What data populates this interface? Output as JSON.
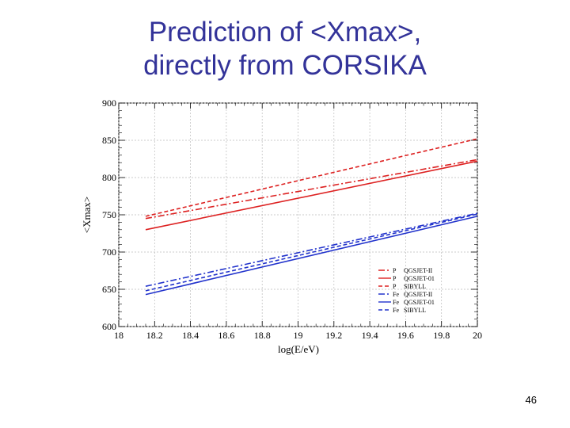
{
  "slide": {
    "title_line1": "Prediction of <Xmax>,",
    "title_line2": "directly from CORSIKA",
    "page_number": "46"
  },
  "chart_data": {
    "type": "line",
    "xlabel": "log(E/eV)",
    "ylabel": "<Xmax>",
    "xlim": [
      18,
      20
    ],
    "ylim": [
      600,
      900
    ],
    "xticks": [
      "18",
      "18.2",
      "18.4",
      "18.6",
      "18.8",
      "19",
      "19.2",
      "19.4",
      "19.6",
      "19.8",
      "20"
    ],
    "yticks": [
      "600",
      "650",
      "700",
      "750",
      "800",
      "850",
      "900"
    ],
    "grid": true,
    "legend_position": "bottom-right",
    "series": [
      {
        "name": "P QGSJET-II",
        "x": [
          18.15,
          20
        ],
        "y": [
          745,
          824
        ],
        "color": "#dd2222",
        "dash": "dashdot"
      },
      {
        "name": "P QGSJET-01",
        "x": [
          18.15,
          20
        ],
        "y": [
          730,
          822
        ],
        "color": "#dd2222",
        "dash": "solid"
      },
      {
        "name": "P SIBYLL",
        "x": [
          18.15,
          20
        ],
        "y": [
          748,
          852
        ],
        "color": "#dd2222",
        "dash": "dashed"
      },
      {
        "name": "Fe QGSJET-II",
        "x": [
          18.15,
          20
        ],
        "y": [
          654,
          752
        ],
        "color": "#2233cc",
        "dash": "dashdot"
      },
      {
        "name": "Fe QGSJET-01",
        "x": [
          18.15,
          20
        ],
        "y": [
          643,
          748
        ],
        "color": "#2233cc",
        "dash": "solid"
      },
      {
        "name": "Fe SIBYLL",
        "x": [
          18.15,
          20
        ],
        "y": [
          648,
          751
        ],
        "color": "#2233cc",
        "dash": "dashed"
      }
    ]
  }
}
